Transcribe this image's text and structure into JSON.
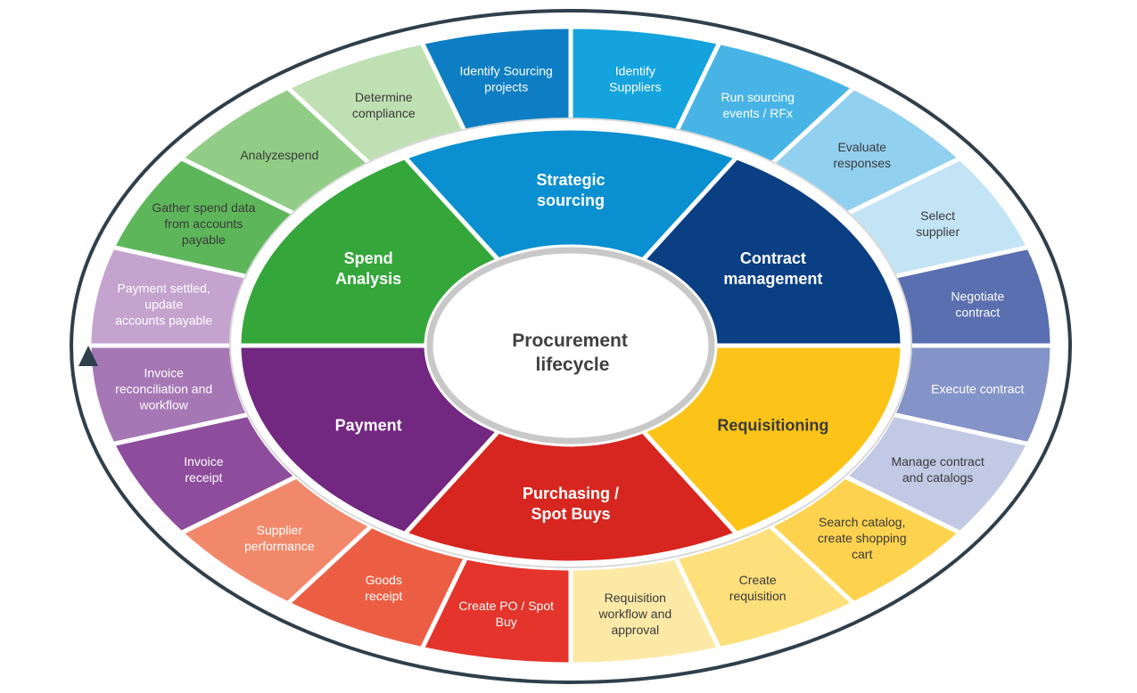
{
  "center": {
    "label_lines": [
      "Procurement",
      "lifecycle"
    ]
  },
  "phases": [
    {
      "id": "strategic-sourcing",
      "lines": [
        "Strategic",
        "sourcing"
      ],
      "color": "#0a8fd0",
      "dark": false
    },
    {
      "id": "contract-management",
      "lines": [
        "Contract",
        "management"
      ],
      "color": "#0b3f84",
      "dark": false
    },
    {
      "id": "requisitioning",
      "lines": [
        "Requisitioning"
      ],
      "color": "#fcc419",
      "dark": true
    },
    {
      "id": "purchasing-spot-buys",
      "lines": [
        "Purchasing /",
        "Spot Buys"
      ],
      "color": "#d7261f",
      "dark": false
    },
    {
      "id": "payment",
      "lines": [
        "Payment"
      ],
      "color": "#722780",
      "dark": false
    },
    {
      "id": "spend-analysis",
      "lines": [
        "Spend",
        "Analysis"
      ],
      "color": "#35a63a",
      "dark": false
    }
  ],
  "steps": [
    {
      "id": "identify-suppliers",
      "lines": [
        "Identify",
        "Suppliers"
      ],
      "color": "#14a3dd",
      "dark": false
    },
    {
      "id": "run-sourcing-events",
      "lines": [
        "Run sourcing",
        "events / RFx"
      ],
      "color": "#48b4e6",
      "dark": false
    },
    {
      "id": "evaluate-responses",
      "lines": [
        "Evaluate",
        "responses"
      ],
      "color": "#91d0ef",
      "dark": true
    },
    {
      "id": "select-supplier",
      "lines": [
        "Select",
        "supplier"
      ],
      "color": "#c3e4f5",
      "dark": true
    },
    {
      "id": "negotiate-contract",
      "lines": [
        "Negotiate",
        "contract"
      ],
      "color": "#5a6fb0",
      "dark": false
    },
    {
      "id": "execute-contract",
      "lines": [
        "Execute contract"
      ],
      "color": "#8494c8",
      "dark": false
    },
    {
      "id": "manage-contract-catalogs",
      "lines": [
        "Manage contract",
        "and catalogs"
      ],
      "color": "#c1c9e5",
      "dark": true
    },
    {
      "id": "search-catalog",
      "lines": [
        "Search catalog,",
        "create shopping",
        "cart"
      ],
      "color": "#fdd24e",
      "dark": true
    },
    {
      "id": "create-requisition",
      "lines": [
        "Create",
        "requisition"
      ],
      "color": "#fddf7c",
      "dark": true
    },
    {
      "id": "requisition-workflow",
      "lines": [
        "Requisition",
        "workflow and",
        "approval"
      ],
      "color": "#fde9a6",
      "dark": true
    },
    {
      "id": "create-po-spot-buy",
      "lines": [
        "Create PO / Spot",
        "Buy"
      ],
      "color": "#e4342b",
      "dark": false
    },
    {
      "id": "goods-receipt",
      "lines": [
        "Goods",
        "receipt"
      ],
      "color": "#ec5e44",
      "dark": false
    },
    {
      "id": "supplier-performance",
      "lines": [
        "Supplier",
        "performance"
      ],
      "color": "#f2886a",
      "dark": false
    },
    {
      "id": "invoice-receipt",
      "lines": [
        "Invoice",
        "receipt"
      ],
      "color": "#8d4d9c",
      "dark": false
    },
    {
      "id": "invoice-reconciliation",
      "lines": [
        "Invoice",
        "reconciliation and",
        "workflow"
      ],
      "color": "#a677b5",
      "dark": false
    },
    {
      "id": "payment-settled",
      "lines": [
        "Payment settled,",
        "update",
        "accounts payable"
      ],
      "color": "#c4a3cf",
      "dark": false
    },
    {
      "id": "gather-spend-data",
      "lines": [
        "Gather spend data",
        "from accounts",
        "payable"
      ],
      "color": "#5db75a",
      "dark": true
    },
    {
      "id": "analyze-spend",
      "lines": [
        "Analyzespend"
      ],
      "color": "#91cd86",
      "dark": true
    },
    {
      "id": "determine-compliance",
      "lines": [
        "Determine",
        "compliance"
      ],
      "color": "#bfe0b3",
      "dark": true
    },
    {
      "id": "identify-sourcing-projects",
      "lines": [
        "Identify Sourcing",
        "projects"
      ],
      "color": "#0e7ec4",
      "dark": false
    }
  ],
  "colors": {
    "ring_outline": "#2f3f4b",
    "separator": "#ffffff",
    "inner_ring": "#d9d9d9",
    "hub_fill": "#ffffff",
    "hub_border": "#c8c8c8"
  }
}
